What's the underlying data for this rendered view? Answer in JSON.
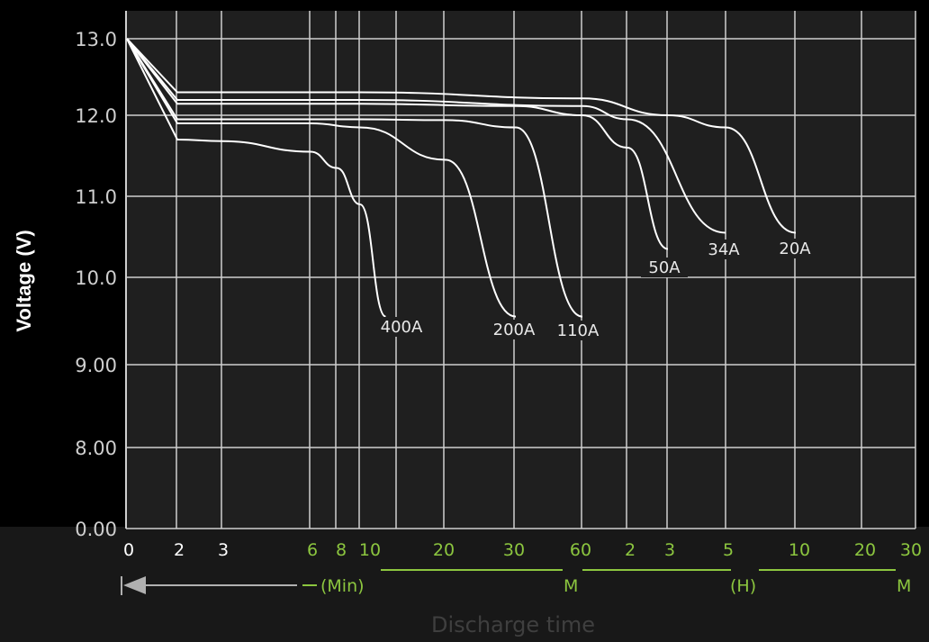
{
  "chart_data": {
    "type": "line",
    "title": "",
    "ylabel": "Voltage (V)",
    "xlabel": "Discharge time",
    "y_ticks": [
      "13.0",
      "12.0",
      "11.0",
      "10.0",
      "9.00",
      "8.00",
      "0.00"
    ],
    "x_ticks": [
      {
        "label": "0",
        "unit": "min"
      },
      {
        "label": "2",
        "unit": "min"
      },
      {
        "label": "3",
        "unit": "min"
      },
      {
        "label": "6",
        "unit": "min"
      },
      {
        "label": "8",
        "unit": "min"
      },
      {
        "label": "10",
        "unit": "min"
      },
      {
        "label": "20",
        "unit": "min"
      },
      {
        "label": "30",
        "unit": "min"
      },
      {
        "label": "60",
        "unit": "min"
      },
      {
        "label": "2",
        "unit": "h"
      },
      {
        "label": "3",
        "unit": "h"
      },
      {
        "label": "5",
        "unit": "h"
      },
      {
        "label": "10",
        "unit": "h"
      },
      {
        "label": "20",
        "unit": "h"
      },
      {
        "label": "30",
        "unit": "h"
      }
    ],
    "units": {
      "min": "(Min)",
      "h": "(H)",
      "m1": "M",
      "m2": "M"
    },
    "grid": true,
    "legend": "none",
    "x_scale": "log time",
    "series": [
      {
        "name": "400A",
        "points": [
          [
            0,
            13.0
          ],
          [
            2,
            11.7
          ],
          [
            3,
            11.68
          ],
          [
            6,
            11.55
          ],
          [
            8,
            11.35
          ],
          [
            10,
            10.9
          ],
          [
            13,
            9.55
          ]
        ]
      },
      {
        "name": "200A",
        "points": [
          [
            0,
            13.0
          ],
          [
            2,
            11.9
          ],
          [
            3,
            11.9
          ],
          [
            6,
            11.9
          ],
          [
            10,
            11.85
          ],
          [
            20,
            11.45
          ],
          [
            30,
            9.55
          ]
        ]
      },
      {
        "name": "110A",
        "points": [
          [
            0,
            13.0
          ],
          [
            2,
            11.95
          ],
          [
            3,
            11.95
          ],
          [
            10,
            11.95
          ],
          [
            20,
            11.94
          ],
          [
            30,
            11.85
          ],
          [
            60,
            9.55
          ]
        ]
      },
      {
        "name": "50A",
        "points": [
          [
            0,
            13.0
          ],
          [
            2,
            12.15
          ],
          [
            3,
            12.15
          ],
          [
            10,
            12.15
          ],
          [
            30,
            12.12
          ],
          [
            60,
            12.0
          ],
          [
            120,
            11.6
          ],
          [
            180,
            10.35
          ]
        ]
      },
      {
        "name": "34A",
        "points": [
          [
            0,
            13.0
          ],
          [
            2,
            12.2
          ],
          [
            3,
            12.2
          ],
          [
            10,
            12.2
          ],
          [
            60,
            12.12
          ],
          [
            120,
            11.95
          ],
          [
            300,
            10.55
          ]
        ]
      },
      {
        "name": "20A",
        "points": [
          [
            0,
            13.0
          ],
          [
            2,
            12.3
          ],
          [
            3,
            12.3
          ],
          [
            10,
            12.3
          ],
          [
            60,
            12.22
          ],
          [
            180,
            12.0
          ],
          [
            300,
            11.85
          ],
          [
            600,
            10.55
          ]
        ]
      }
    ]
  },
  "colors": {
    "background": "#000000",
    "plot_background": "#1f1f1f",
    "grid": "#cfcfcf",
    "curve": "#ffffff",
    "axis_text": "#ffffff",
    "minute_tick_text": "#ffffff",
    "accent": "#8cc63f",
    "bottom_band": "#181818"
  }
}
